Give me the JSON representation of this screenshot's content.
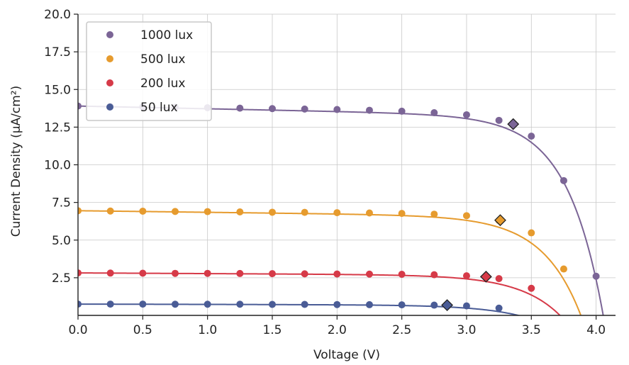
{
  "chart_data": {
    "type": "line",
    "xlabel": "Voltage (V)",
    "ylabel": "Current Density (µA/cm²)",
    "xlim": [
      0.0,
      4.15
    ],
    "ylim": [
      0.0,
      20.0
    ],
    "x_ticks": [
      "0.0",
      "0.5",
      "1.0",
      "1.5",
      "2.0",
      "2.5",
      "3.0",
      "3.5",
      "4.0"
    ],
    "y_ticks": [
      "2.5",
      "5.0",
      "7.5",
      "10.0",
      "12.5",
      "15.0",
      "17.5",
      "20.0"
    ],
    "grid": true,
    "legend_position": "top-left",
    "series": [
      {
        "name": "1000 lux",
        "color": "#7b6596",
        "x": [
          0.0,
          0.25,
          0.5,
          0.75,
          1.0,
          1.25,
          1.5,
          1.75,
          2.0,
          2.25,
          2.5,
          2.75,
          3.0,
          3.25,
          3.5,
          3.75,
          4.0
        ],
        "y": [
          13.9,
          13.87,
          13.85,
          13.82,
          13.79,
          13.76,
          13.73,
          13.7,
          13.67,
          13.62,
          13.56,
          13.46,
          13.32,
          12.95,
          11.9,
          8.95,
          2.6
        ],
        "mpp": {
          "x": 3.36,
          "y": 12.7
        },
        "curve": {
          "jsc": 13.9,
          "slope": 0.18,
          "v0": 4.07,
          "m": 3.6
        }
      },
      {
        "name": "500 lux",
        "color": "#e69b2e",
        "x": [
          0.0,
          0.25,
          0.5,
          0.75,
          1.0,
          1.25,
          1.5,
          1.75,
          2.0,
          2.25,
          2.5,
          2.75,
          3.0,
          3.25,
          3.5,
          3.75
        ],
        "y": [
          6.95,
          6.93,
          6.92,
          6.9,
          6.89,
          6.87,
          6.85,
          6.84,
          6.82,
          6.8,
          6.77,
          6.72,
          6.62,
          6.3,
          5.48,
          3.08
        ],
        "mpp": {
          "x": 3.26,
          "y": 6.32
        },
        "curve": {
          "jsc": 6.95,
          "slope": 0.105,
          "v0": 3.9,
          "m": 3.4
        }
      },
      {
        "name": "200 lux",
        "color": "#d63a48",
        "x": [
          0.0,
          0.25,
          0.5,
          0.75,
          1.0,
          1.25,
          1.5,
          1.75,
          2.0,
          2.25,
          2.5,
          2.75,
          3.0,
          3.25,
          3.5
        ],
        "y": [
          2.82,
          2.81,
          2.8,
          2.79,
          2.79,
          2.78,
          2.77,
          2.76,
          2.75,
          2.74,
          2.73,
          2.7,
          2.63,
          2.44,
          1.8
        ],
        "mpp": {
          "x": 3.15,
          "y": 2.57
        },
        "curve": {
          "jsc": 2.82,
          "slope": 0.045,
          "v0": 3.74,
          "m": 3.2
        }
      },
      {
        "name": "50 lux",
        "color": "#4a5c96",
        "x": [
          0.0,
          0.25,
          0.5,
          0.75,
          1.0,
          1.25,
          1.5,
          1.75,
          2.0,
          2.25,
          2.5,
          2.75,
          3.0,
          3.25
        ],
        "y": [
          0.75,
          0.75,
          0.75,
          0.74,
          0.74,
          0.74,
          0.73,
          0.73,
          0.72,
          0.71,
          0.7,
          0.68,
          0.63,
          0.48
        ],
        "mpp": {
          "x": 2.85,
          "y": 0.68
        },
        "curve": {
          "jsc": 0.75,
          "slope": 0.02,
          "v0": 3.43,
          "m": 3.0
        }
      }
    ]
  }
}
